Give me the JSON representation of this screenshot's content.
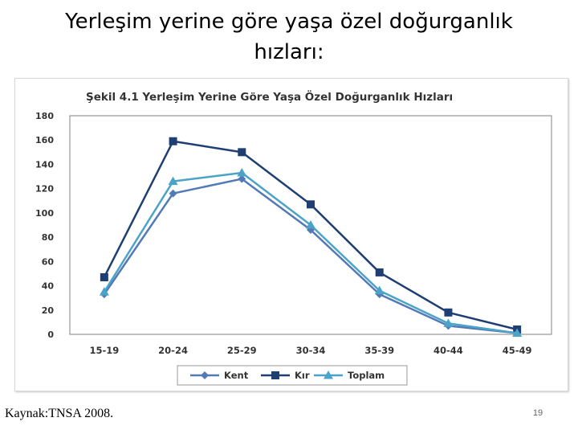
{
  "slide": {
    "title": "Yerleşim yerine göre yaşa özel doğurganlık hızları:",
    "source": "Kaynak:TNSA 2008.",
    "page_number": "19"
  },
  "chart_data": {
    "type": "line",
    "title": "Şekil 4.1 Yerleşim Yerine Göre Yaşa Özel Doğurganlık Hızları",
    "xlabel": "",
    "ylabel": "",
    "categories": [
      "15-19",
      "20-24",
      "25-29",
      "30-34",
      "35-39",
      "40-44",
      "45-49"
    ],
    "ylim": [
      0,
      180
    ],
    "yticks": [
      0,
      20,
      40,
      60,
      80,
      100,
      120,
      140,
      160,
      180
    ],
    "grid": false,
    "legend": "bottom",
    "series": [
      {
        "name": "Kent",
        "values": [
          33,
          116,
          128,
          86,
          33,
          7,
          1
        ],
        "color": "#5479b7",
        "marker": "diamond"
      },
      {
        "name": "Kır",
        "values": [
          47,
          159,
          150,
          107,
          51,
          18,
          4
        ],
        "color": "#1f3f73",
        "marker": "square"
      },
      {
        "name": "Toplam",
        "values": [
          35,
          126,
          133,
          90,
          36,
          9,
          1
        ],
        "color": "#4ba3c7",
        "marker": "triangle"
      }
    ]
  }
}
